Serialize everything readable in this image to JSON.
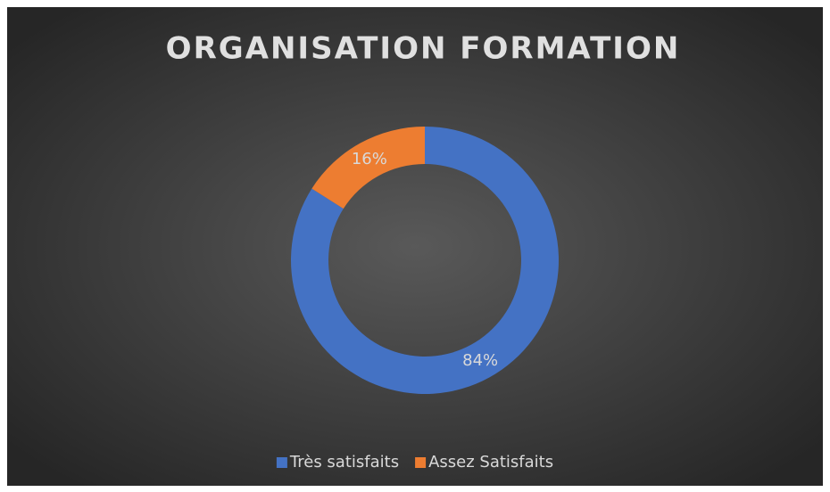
{
  "chart_data": {
    "type": "donut",
    "title": "ORGANISATION FORMATION",
    "categories": [
      "Très satisfaits",
      "Assez Satisfaits"
    ],
    "values": [
      84,
      16
    ],
    "value_labels": [
      "84%",
      "16%"
    ],
    "colors": [
      "#4472c4",
      "#ed7d31"
    ],
    "legend": "bottom"
  }
}
